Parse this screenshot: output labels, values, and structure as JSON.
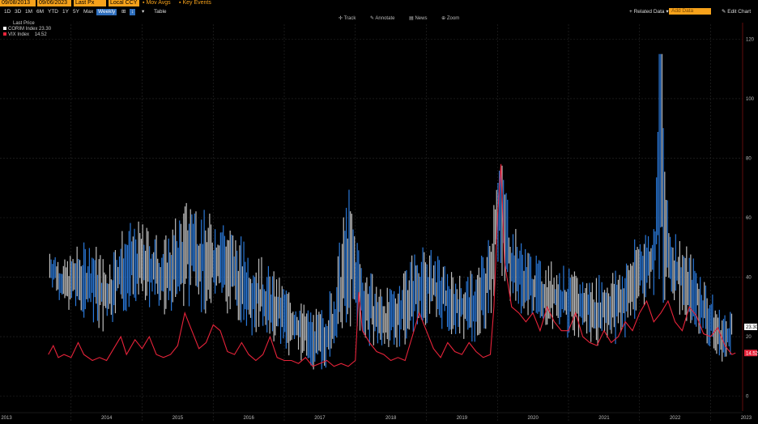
{
  "toolbar": {
    "start_date": "09/08/2013",
    "end_date": "09/06/2023",
    "price_field": "Last Px",
    "currency": "Local CCY",
    "mov_avgs": "Mov Avgs",
    "key_events": "Key Events",
    "ranges": [
      "1D",
      "3D",
      "1M",
      "6M",
      "YTD",
      "1Y",
      "5Y",
      "Max"
    ],
    "frequency": "Weekly",
    "table": "Table",
    "related_data": "Related Data",
    "add_data": "Add Data",
    "edit_chart": "Edit Chart",
    "modes": [
      "Track",
      "Annotate",
      "News",
      "Zoom"
    ]
  },
  "legend": {
    "header": "Last Price",
    "items": [
      {
        "name": "CORIM Index",
        "value": "23.30",
        "color": "#ffffff"
      },
      {
        "name": "VIX Index",
        "value": "14.52",
        "color": "#e8233a"
      }
    ]
  },
  "chart_data": {
    "type": "line",
    "title": "",
    "xlabel": "",
    "ylabel": "",
    "ylim": [
      -5,
      125
    ],
    "yticks": [
      0,
      20,
      40,
      60,
      80,
      100,
      120
    ],
    "x_tick_labels": [
      "2013",
      "2014",
      "2015",
      "2016",
      "2017",
      "2018",
      "2019",
      "2020",
      "2021",
      "2022",
      "2023"
    ],
    "grid": true,
    "last_value_labels": [
      {
        "series": "CORIM Index",
        "value": "23.30"
      },
      {
        "series": "VIX Index",
        "value": "14.52"
      }
    ],
    "series": [
      {
        "name": "CORIM Index",
        "style": "high-low bars",
        "color_up": "#2a78d8",
        "color_down": "#bdbdbd",
        "points": [
          [
            2013.7,
            38,
            50
          ],
          [
            2013.9,
            30,
            45
          ],
          [
            2014.1,
            28,
            50
          ],
          [
            2014.3,
            25,
            52
          ],
          [
            2014.5,
            20,
            45
          ],
          [
            2014.7,
            28,
            55
          ],
          [
            2014.9,
            32,
            58
          ],
          [
            2015.1,
            30,
            56
          ],
          [
            2015.3,
            28,
            52
          ],
          [
            2015.5,
            30,
            60
          ],
          [
            2015.7,
            32,
            68
          ],
          [
            2015.9,
            28,
            60
          ],
          [
            2016.1,
            30,
            62
          ],
          [
            2016.3,
            25,
            55
          ],
          [
            2016.5,
            22,
            50
          ],
          [
            2016.7,
            20,
            45
          ],
          [
            2016.9,
            18,
            40
          ],
          [
            2017.1,
            14,
            35
          ],
          [
            2017.3,
            12,
            30
          ],
          [
            2017.5,
            8,
            28
          ],
          [
            2017.7,
            10,
            38
          ],
          [
            2017.9,
            25,
            70
          ],
          [
            2018.1,
            20,
            45
          ],
          [
            2018.3,
            15,
            38
          ],
          [
            2018.5,
            15,
            35
          ],
          [
            2018.7,
            18,
            45
          ],
          [
            2018.9,
            25,
            50
          ],
          [
            2019.1,
            25,
            48
          ],
          [
            2019.3,
            22,
            42
          ],
          [
            2019.5,
            20,
            40
          ],
          [
            2019.7,
            18,
            42
          ],
          [
            2019.9,
            25,
            55
          ],
          [
            2020.0,
            45,
            85
          ],
          [
            2020.1,
            40,
            75
          ],
          [
            2020.2,
            30,
            58
          ],
          [
            2020.4,
            28,
            50
          ],
          [
            2020.6,
            25,
            45
          ],
          [
            2020.8,
            22,
            45
          ],
          [
            2021.0,
            20,
            42
          ],
          [
            2021.2,
            20,
            40
          ],
          [
            2021.4,
            18,
            40
          ],
          [
            2021.6,
            18,
            42
          ],
          [
            2021.8,
            20,
            45
          ],
          [
            2022.0,
            30,
            55
          ],
          [
            2022.2,
            35,
            58
          ],
          [
            2022.3,
            30,
            115
          ],
          [
            2022.4,
            30,
            60
          ],
          [
            2022.6,
            28,
            52
          ],
          [
            2022.8,
            22,
            45
          ],
          [
            2023.0,
            15,
            35
          ],
          [
            2023.1,
            12,
            30
          ],
          [
            2023.2,
            10,
            28
          ],
          [
            2023.3,
            15,
            30
          ]
        ]
      },
      {
        "name": "VIX Index",
        "color": "#e8233a",
        "points": [
          [
            2013.68,
            14
          ],
          [
            2013.75,
            17
          ],
          [
            2013.82,
            13
          ],
          [
            2013.9,
            14
          ],
          [
            2014.0,
            13
          ],
          [
            2014.1,
            18
          ],
          [
            2014.18,
            14
          ],
          [
            2014.3,
            12
          ],
          [
            2014.4,
            13
          ],
          [
            2014.5,
            12
          ],
          [
            2014.6,
            16
          ],
          [
            2014.7,
            20
          ],
          [
            2014.78,
            14
          ],
          [
            2014.9,
            19
          ],
          [
            2015.0,
            16
          ],
          [
            2015.1,
            20
          ],
          [
            2015.2,
            14
          ],
          [
            2015.3,
            13
          ],
          [
            2015.4,
            14
          ],
          [
            2015.5,
            17
          ],
          [
            2015.6,
            28
          ],
          [
            2015.7,
            22
          ],
          [
            2015.8,
            16
          ],
          [
            2015.9,
            18
          ],
          [
            2016.0,
            24
          ],
          [
            2016.1,
            22
          ],
          [
            2016.2,
            15
          ],
          [
            2016.3,
            14
          ],
          [
            2016.4,
            18
          ],
          [
            2016.5,
            14
          ],
          [
            2016.6,
            12
          ],
          [
            2016.7,
            14
          ],
          [
            2016.8,
            20
          ],
          [
            2016.9,
            13
          ],
          [
            2017.0,
            12
          ],
          [
            2017.1,
            12
          ],
          [
            2017.2,
            11
          ],
          [
            2017.3,
            13
          ],
          [
            2017.4,
            10
          ],
          [
            2017.5,
            11
          ],
          [
            2017.6,
            12
          ],
          [
            2017.7,
            10
          ],
          [
            2017.8,
            11
          ],
          [
            2017.9,
            10
          ],
          [
            2018.0,
            12
          ],
          [
            2018.05,
            35
          ],
          [
            2018.1,
            22
          ],
          [
            2018.2,
            18
          ],
          [
            2018.3,
            15
          ],
          [
            2018.4,
            14
          ],
          [
            2018.5,
            12
          ],
          [
            2018.6,
            13
          ],
          [
            2018.7,
            12
          ],
          [
            2018.8,
            20
          ],
          [
            2018.9,
            28
          ],
          [
            2019.0,
            22
          ],
          [
            2019.1,
            16
          ],
          [
            2019.2,
            13
          ],
          [
            2019.3,
            18
          ],
          [
            2019.4,
            15
          ],
          [
            2019.5,
            14
          ],
          [
            2019.6,
            18
          ],
          [
            2019.7,
            15
          ],
          [
            2019.8,
            13
          ],
          [
            2019.9,
            14
          ],
          [
            2019.95,
            30
          ],
          [
            2020.0,
            60
          ],
          [
            2020.05,
            78
          ],
          [
            2020.1,
            45
          ],
          [
            2020.2,
            30
          ],
          [
            2020.3,
            28
          ],
          [
            2020.4,
            25
          ],
          [
            2020.5,
            28
          ],
          [
            2020.6,
            22
          ],
          [
            2020.7,
            30
          ],
          [
            2020.8,
            25
          ],
          [
            2020.9,
            22
          ],
          [
            2021.0,
            22
          ],
          [
            2021.1,
            28
          ],
          [
            2021.2,
            20
          ],
          [
            2021.3,
            18
          ],
          [
            2021.4,
            17
          ],
          [
            2021.5,
            22
          ],
          [
            2021.6,
            18
          ],
          [
            2021.7,
            20
          ],
          [
            2021.8,
            25
          ],
          [
            2021.9,
            22
          ],
          [
            2022.0,
            28
          ],
          [
            2022.1,
            32
          ],
          [
            2022.2,
            25
          ],
          [
            2022.3,
            28
          ],
          [
            2022.4,
            32
          ],
          [
            2022.5,
            25
          ],
          [
            2022.6,
            22
          ],
          [
            2022.7,
            30
          ],
          [
            2022.8,
            27
          ],
          [
            2022.9,
            21
          ],
          [
            2023.0,
            20
          ],
          [
            2023.1,
            23
          ],
          [
            2023.2,
            17
          ],
          [
            2023.3,
            14
          ],
          [
            2023.35,
            14.52
          ]
        ]
      }
    ]
  }
}
